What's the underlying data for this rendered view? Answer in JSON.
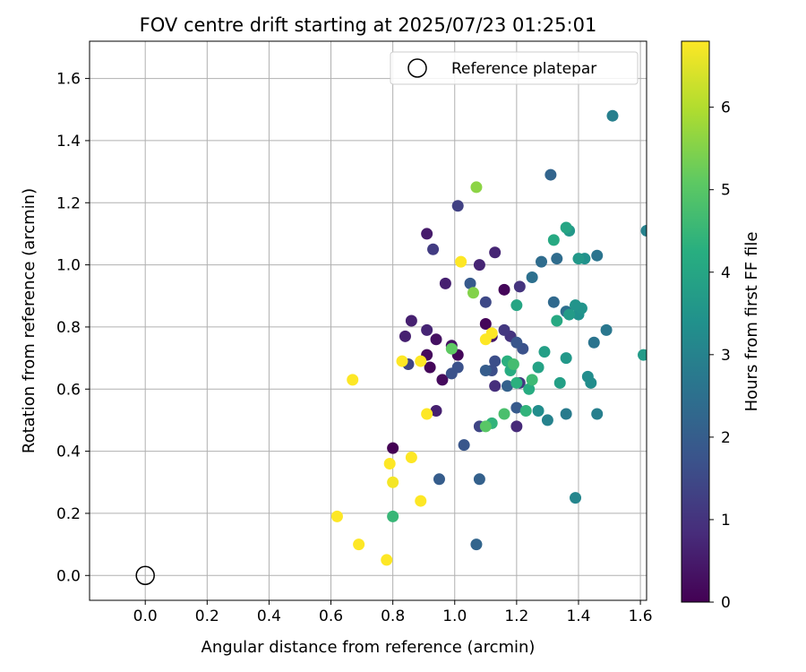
{
  "chart_data": {
    "type": "scatter",
    "title": "FOV centre drift starting at 2025/07/23 01:25:01",
    "xlabel": "Angular distance from reference (arcmin)",
    "ylabel": "Rotation from reference (arcmin)",
    "xlim": [
      -0.18,
      1.62
    ],
    "ylim": [
      -0.08,
      1.72
    ],
    "xticks": [
      0.0,
      0.2,
      0.4,
      0.6,
      0.8,
      1.0,
      1.2,
      1.4,
      1.6
    ],
    "yticks": [
      0.0,
      0.2,
      0.4,
      0.6,
      0.8,
      1.0,
      1.2,
      1.4,
      1.6
    ],
    "grid": true,
    "legend": {
      "placement": "top-right",
      "entries": [
        "Reference platepar"
      ]
    },
    "reference_point": {
      "x": 0.0,
      "y": 0.0
    },
    "colorbar": {
      "label": "Hours from first FF file",
      "range": [
        0,
        6.8
      ],
      "ticks": [
        0,
        1,
        2,
        3,
        4,
        5,
        6
      ],
      "colormap": "viridis"
    },
    "points": [
      {
        "x": 0.8,
        "y": 0.41,
        "h": 0.0
      },
      {
        "x": 0.92,
        "y": 0.67,
        "h": 0.1
      },
      {
        "x": 1.01,
        "y": 0.71,
        "h": 0.1
      },
      {
        "x": 1.1,
        "y": 0.81,
        "h": 0.1
      },
      {
        "x": 1.16,
        "y": 0.92,
        "h": 0.1
      },
      {
        "x": 0.96,
        "y": 0.63,
        "h": 0.2
      },
      {
        "x": 0.91,
        "y": 0.71,
        "h": 0.2
      },
      {
        "x": 0.94,
        "y": 0.76,
        "h": 0.3
      },
      {
        "x": 0.99,
        "y": 0.74,
        "h": 0.3
      },
      {
        "x": 1.12,
        "y": 0.77,
        "h": 0.4
      },
      {
        "x": 0.91,
        "y": 1.1,
        "h": 0.5
      },
      {
        "x": 0.97,
        "y": 0.94,
        "h": 0.6
      },
      {
        "x": 0.86,
        "y": 0.82,
        "h": 0.6
      },
      {
        "x": 0.84,
        "y": 0.77,
        "h": 0.6
      },
      {
        "x": 0.94,
        "y": 0.53,
        "h": 0.6
      },
      {
        "x": 1.08,
        "y": 1.0,
        "h": 0.7
      },
      {
        "x": 1.13,
        "y": 1.04,
        "h": 0.7
      },
      {
        "x": 0.91,
        "y": 0.79,
        "h": 0.7
      },
      {
        "x": 1.2,
        "y": 0.48,
        "h": 0.8
      },
      {
        "x": 1.13,
        "y": 0.61,
        "h": 0.9
      },
      {
        "x": 1.21,
        "y": 0.93,
        "h": 1.0
      },
      {
        "x": 1.18,
        "y": 0.77,
        "h": 1.0
      },
      {
        "x": 1.21,
        "y": 0.62,
        "h": 1.1
      },
      {
        "x": 1.16,
        "y": 0.79,
        "h": 1.1
      },
      {
        "x": 0.93,
        "y": 1.05,
        "h": 1.2
      },
      {
        "x": 1.01,
        "y": 1.19,
        "h": 1.3
      },
      {
        "x": 0.85,
        "y": 0.68,
        "h": 1.4
      },
      {
        "x": 1.08,
        "y": 0.48,
        "h": 1.4
      },
      {
        "x": 1.1,
        "y": 0.88,
        "h": 1.5
      },
      {
        "x": 1.12,
        "y": 0.66,
        "h": 1.6
      },
      {
        "x": 1.13,
        "y": 0.69,
        "h": 1.6
      },
      {
        "x": 0.99,
        "y": 0.65,
        "h": 1.7
      },
      {
        "x": 1.01,
        "y": 0.67,
        "h": 1.7
      },
      {
        "x": 1.22,
        "y": 0.73,
        "h": 1.7
      },
      {
        "x": 1.2,
        "y": 0.75,
        "h": 1.8
      },
      {
        "x": 1.03,
        "y": 0.42,
        "h": 1.8
      },
      {
        "x": 1.2,
        "y": 0.54,
        "h": 1.9
      },
      {
        "x": 1.05,
        "y": 0.94,
        "h": 1.9
      },
      {
        "x": 1.1,
        "y": 0.66,
        "h": 2.0
      },
      {
        "x": 0.95,
        "y": 0.31,
        "h": 2.0
      },
      {
        "x": 1.08,
        "y": 0.31,
        "h": 2.1
      },
      {
        "x": 1.17,
        "y": 0.61,
        "h": 2.1
      },
      {
        "x": 1.07,
        "y": 0.1,
        "h": 2.2
      },
      {
        "x": 1.31,
        "y": 1.29,
        "h": 2.2
      },
      {
        "x": 1.32,
        "y": 0.88,
        "h": 2.3
      },
      {
        "x": 1.28,
        "y": 1.01,
        "h": 2.4
      },
      {
        "x": 1.33,
        "y": 1.02,
        "h": 2.4
      },
      {
        "x": 1.25,
        "y": 0.96,
        "h": 2.5
      },
      {
        "x": 1.36,
        "y": 0.85,
        "h": 2.5
      },
      {
        "x": 1.46,
        "y": 1.03,
        "h": 2.6
      },
      {
        "x": 1.45,
        "y": 0.75,
        "h": 2.6
      },
      {
        "x": 1.49,
        "y": 0.79,
        "h": 2.7
      },
      {
        "x": 1.36,
        "y": 0.52,
        "h": 2.8
      },
      {
        "x": 1.46,
        "y": 0.52,
        "h": 2.9
      },
      {
        "x": 1.51,
        "y": 1.48,
        "h": 2.9
      },
      {
        "x": 1.3,
        "y": 0.5,
        "h": 3.0
      },
      {
        "x": 1.62,
        "y": 1.11,
        "h": 3.0
      },
      {
        "x": 1.39,
        "y": 0.25,
        "h": 3.1
      },
      {
        "x": 1.27,
        "y": 0.53,
        "h": 3.3
      },
      {
        "x": 1.43,
        "y": 0.64,
        "h": 3.3
      },
      {
        "x": 1.44,
        "y": 0.62,
        "h": 3.3
      },
      {
        "x": 1.42,
        "y": 1.02,
        "h": 3.4
      },
      {
        "x": 1.4,
        "y": 0.84,
        "h": 3.4
      },
      {
        "x": 1.41,
        "y": 0.86,
        "h": 3.5
      },
      {
        "x": 1.39,
        "y": 0.87,
        "h": 3.5
      },
      {
        "x": 1.37,
        "y": 1.11,
        "h": 3.6
      },
      {
        "x": 1.4,
        "y": 1.02,
        "h": 3.6
      },
      {
        "x": 1.36,
        "y": 0.7,
        "h": 3.6
      },
      {
        "x": 1.61,
        "y": 0.71,
        "h": 3.7
      },
      {
        "x": 1.37,
        "y": 0.84,
        "h": 3.7
      },
      {
        "x": 1.34,
        "y": 0.62,
        "h": 3.8
      },
      {
        "x": 1.29,
        "y": 0.72,
        "h": 3.8
      },
      {
        "x": 1.27,
        "y": 0.67,
        "h": 3.9
      },
      {
        "x": 1.2,
        "y": 0.87,
        "h": 4.0
      },
      {
        "x": 1.36,
        "y": 1.12,
        "h": 4.0
      },
      {
        "x": 1.32,
        "y": 1.08,
        "h": 4.1
      },
      {
        "x": 1.33,
        "y": 0.82,
        "h": 4.1
      },
      {
        "x": 1.24,
        "y": 0.6,
        "h": 4.2
      },
      {
        "x": 1.18,
        "y": 0.66,
        "h": 4.2
      },
      {
        "x": 1.17,
        "y": 0.69,
        "h": 4.3
      },
      {
        "x": 1.2,
        "y": 0.62,
        "h": 4.3
      },
      {
        "x": 1.23,
        "y": 0.53,
        "h": 4.4
      },
      {
        "x": 1.12,
        "y": 0.49,
        "h": 4.4
      },
      {
        "x": 0.8,
        "y": 0.19,
        "h": 4.5
      },
      {
        "x": 1.25,
        "y": 0.63,
        "h": 4.6
      },
      {
        "x": 1.19,
        "y": 0.68,
        "h": 4.7
      },
      {
        "x": 1.16,
        "y": 0.52,
        "h": 4.8
      },
      {
        "x": 1.1,
        "y": 0.48,
        "h": 5.0
      },
      {
        "x": 0.99,
        "y": 0.73,
        "h": 5.1
      },
      {
        "x": 1.06,
        "y": 0.91,
        "h": 5.5
      },
      {
        "x": 1.07,
        "y": 1.25,
        "h": 5.6
      },
      {
        "x": 0.8,
        "y": 0.3,
        "h": 6.7
      },
      {
        "x": 0.83,
        "y": 0.69,
        "h": 6.8
      },
      {
        "x": 0.67,
        "y": 0.63,
        "h": 6.8
      },
      {
        "x": 0.62,
        "y": 0.19,
        "h": 6.8
      },
      {
        "x": 0.69,
        "y": 0.1,
        "h": 6.8
      },
      {
        "x": 0.78,
        "y": 0.05,
        "h": 6.8
      },
      {
        "x": 0.79,
        "y": 0.36,
        "h": 6.8
      },
      {
        "x": 0.86,
        "y": 0.38,
        "h": 6.8
      },
      {
        "x": 0.89,
        "y": 0.24,
        "h": 6.8
      },
      {
        "x": 0.89,
        "y": 0.69,
        "h": 6.8
      },
      {
        "x": 0.91,
        "y": 0.52,
        "h": 6.8
      },
      {
        "x": 1.02,
        "y": 1.01,
        "h": 6.8
      },
      {
        "x": 1.1,
        "y": 0.76,
        "h": 6.8
      },
      {
        "x": 1.12,
        "y": 0.78,
        "h": 6.8
      }
    ]
  }
}
